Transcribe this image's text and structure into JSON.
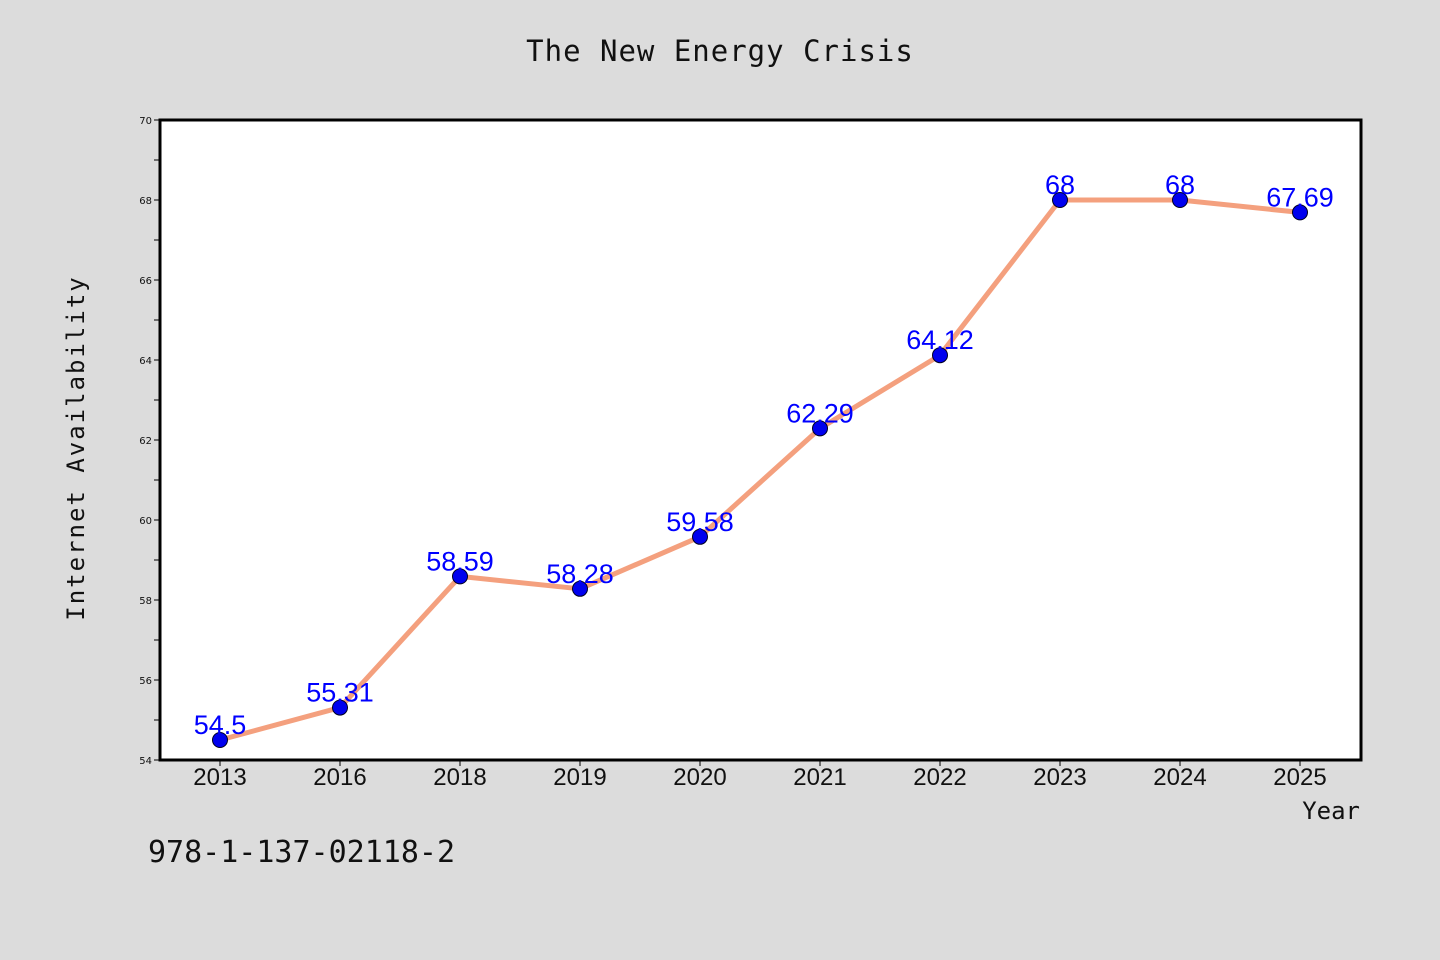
{
  "chart_data": {
    "type": "line",
    "title": "The New Energy Crisis",
    "xlabel": "Year",
    "ylabel": "Internet Availability",
    "categories": [
      "2013",
      "2016",
      "2018",
      "2019",
      "2020",
      "2021",
      "2022",
      "2023",
      "2024",
      "2025"
    ],
    "series": [
      {
        "values": [
          54.5,
          55.31,
          58.59,
          58.28,
          59.58,
          62.29,
          64.12,
          68,
          68,
          67.69
        ],
        "data_labels": [
          "54.5",
          "55.31",
          "58.59",
          "58.28",
          "59.58",
          "62.29",
          "64.12",
          "68",
          "68",
          "67.69"
        ],
        "line_color": "#f4a07e",
        "marker_color": "#0000ee",
        "label_color": "#0000ff"
      }
    ],
    "ylim": [
      54,
      70
    ],
    "yticks": [
      "54",
      "56",
      "58",
      "60",
      "62",
      "64",
      "66",
      "68",
      "70"
    ],
    "grid": false,
    "legend": "none"
  },
  "footnote": "978-1-137-02118-2",
  "colors": {
    "background": "#dcdcdc",
    "plot_background": "#ffffff",
    "axis": "#000000"
  }
}
